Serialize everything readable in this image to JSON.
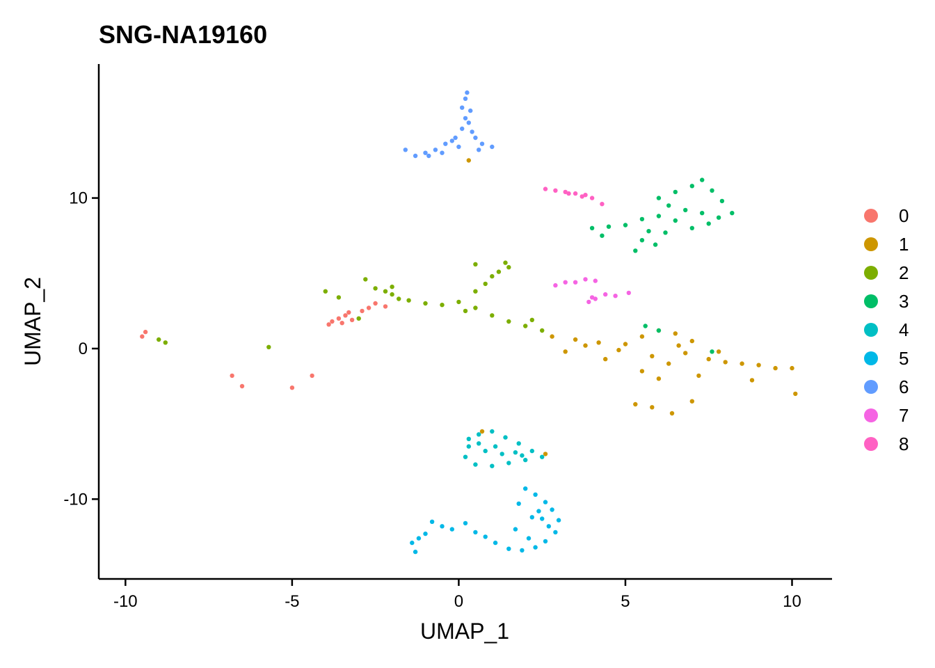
{
  "chart_data": {
    "type": "scatter",
    "title": "SNG-NA19160",
    "xlabel": "UMAP_1",
    "ylabel": "UMAP_2",
    "xlim": [
      -10.8,
      11.2
    ],
    "ylim": [
      -15.3,
      18.9
    ],
    "x_ticks": [
      -10,
      -5,
      0,
      5,
      10
    ],
    "x_tick_labels": [
      "-10",
      "-5",
      "0",
      "5",
      "10"
    ],
    "y_ticks": [
      -10,
      0,
      10
    ],
    "y_tick_labels": [
      "-10",
      "0",
      "10"
    ],
    "grid": false,
    "legend_position": "right",
    "series": [
      {
        "name": "0",
        "color": "#F8766D",
        "points": [
          [
            -3.8,
            1.8
          ],
          [
            -3.6,
            2.0
          ],
          [
            -3.4,
            2.2
          ],
          [
            -3.2,
            1.9
          ],
          [
            -3.9,
            1.6
          ],
          [
            -3.5,
            1.7
          ],
          [
            -3.3,
            2.4
          ],
          [
            -2.9,
            2.5
          ],
          [
            -2.7,
            2.7
          ],
          [
            -2.2,
            2.8
          ],
          [
            -2.5,
            3.0
          ],
          [
            -9.4,
            1.1
          ],
          [
            -9.5,
            0.8
          ],
          [
            -6.8,
            -1.8
          ],
          [
            -6.5,
            -2.5
          ],
          [
            -5.0,
            -2.6
          ],
          [
            -4.4,
            -1.8
          ]
        ]
      },
      {
        "name": "1",
        "color": "#CD9600",
        "points": [
          [
            2.8,
            0.8
          ],
          [
            3.5,
            0.6
          ],
          [
            4.2,
            0.4
          ],
          [
            5.0,
            0.3
          ],
          [
            5.5,
            0.8
          ],
          [
            6.0,
            1.2
          ],
          [
            6.5,
            1.0
          ],
          [
            7.0,
            0.5
          ],
          [
            5.8,
            -0.5
          ],
          [
            6.3,
            -1.0
          ],
          [
            6.8,
            -0.3
          ],
          [
            7.5,
            -0.7
          ],
          [
            8.0,
            -0.9
          ],
          [
            8.5,
            -1.0
          ],
          [
            9.0,
            -1.1
          ],
          [
            9.5,
            -1.3
          ],
          [
            10.0,
            -1.3
          ],
          [
            10.1,
            -3.0
          ],
          [
            5.5,
            -1.5
          ],
          [
            6.0,
            -2.0
          ],
          [
            7.2,
            -1.8
          ],
          [
            8.8,
            -2.1
          ],
          [
            5.3,
            -3.7
          ],
          [
            5.8,
            -3.9
          ],
          [
            6.4,
            -4.3
          ],
          [
            7.0,
            -3.5
          ],
          [
            6.6,
            0.2
          ],
          [
            7.8,
            -0.2
          ],
          [
            4.8,
            -0.1
          ],
          [
            3.8,
            0.2
          ],
          [
            3.2,
            -0.2
          ],
          [
            4.4,
            -0.7
          ],
          [
            0.7,
            -5.5
          ],
          [
            2.6,
            -7.0
          ],
          [
            0.3,
            12.5
          ]
        ]
      },
      {
        "name": "2",
        "color": "#7CAE00",
        "points": [
          [
            -2.8,
            4.6
          ],
          [
            -2.5,
            4.0
          ],
          [
            -2.2,
            3.8
          ],
          [
            -2.0,
            3.6
          ],
          [
            -1.5,
            3.2
          ],
          [
            -1.0,
            3.0
          ],
          [
            -0.5,
            2.9
          ],
          [
            0.0,
            3.1
          ],
          [
            0.5,
            2.7
          ],
          [
            1.0,
            2.2
          ],
          [
            1.5,
            1.8
          ],
          [
            2.0,
            1.5
          ],
          [
            2.5,
            1.2
          ],
          [
            0.5,
            3.8
          ],
          [
            0.8,
            4.3
          ],
          [
            1.0,
            4.8
          ],
          [
            1.2,
            5.1
          ],
          [
            0.5,
            5.6
          ],
          [
            1.5,
            5.4
          ],
          [
            1.4,
            5.7
          ],
          [
            -4.0,
            3.8
          ],
          [
            -3.6,
            3.4
          ],
          [
            -3.0,
            2.0
          ],
          [
            -8.8,
            0.4
          ],
          [
            -9.0,
            0.6
          ],
          [
            -5.7,
            0.1
          ],
          [
            -2.0,
            4.1
          ],
          [
            -1.8,
            3.3
          ],
          [
            0.2,
            2.5
          ],
          [
            2.2,
            1.9
          ]
        ]
      },
      {
        "name": "3",
        "color": "#00BE67",
        "points": [
          [
            6.0,
            10.0
          ],
          [
            6.5,
            10.4
          ],
          [
            7.0,
            10.8
          ],
          [
            7.3,
            11.2
          ],
          [
            7.6,
            10.5
          ],
          [
            7.9,
            9.8
          ],
          [
            8.2,
            9.0
          ],
          [
            7.5,
            8.3
          ],
          [
            7.0,
            8.0
          ],
          [
            6.5,
            8.5
          ],
          [
            6.0,
            8.8
          ],
          [
            5.5,
            8.6
          ],
          [
            5.0,
            8.2
          ],
          [
            4.5,
            8.1
          ],
          [
            4.0,
            8.0
          ],
          [
            5.3,
            6.5
          ],
          [
            5.5,
            7.2
          ],
          [
            5.7,
            7.8
          ],
          [
            6.3,
            9.5
          ],
          [
            6.8,
            9.2
          ],
          [
            7.3,
            9.0
          ],
          [
            7.8,
            8.7
          ],
          [
            6.2,
            7.7
          ],
          [
            5.9,
            6.9
          ],
          [
            4.3,
            7.5
          ],
          [
            5.6,
            1.5
          ],
          [
            6.0,
            1.2
          ],
          [
            7.6,
            -0.2
          ]
        ]
      },
      {
        "name": "4",
        "color": "#00BFC4",
        "points": [
          [
            0.3,
            -6.0
          ],
          [
            0.6,
            -5.7
          ],
          [
            1.0,
            -5.5
          ],
          [
            1.4,
            -5.9
          ],
          [
            1.8,
            -6.3
          ],
          [
            2.2,
            -6.8
          ],
          [
            2.5,
            -7.2
          ],
          [
            2.0,
            -7.4
          ],
          [
            1.5,
            -7.6
          ],
          [
            1.0,
            -7.8
          ],
          [
            0.5,
            -7.7
          ],
          [
            0.2,
            -7.2
          ],
          [
            0.3,
            -6.5
          ],
          [
            0.8,
            -6.8
          ],
          [
            1.3,
            -7.0
          ],
          [
            1.7,
            -6.9
          ],
          [
            0.6,
            -6.3
          ],
          [
            1.1,
            -6.5
          ],
          [
            1.9,
            -7.1
          ]
        ]
      },
      {
        "name": "5",
        "color": "#00B8E7",
        "points": [
          [
            -1.4,
            -12.9
          ],
          [
            -1.2,
            -12.6
          ],
          [
            -1.0,
            -12.3
          ],
          [
            -0.8,
            -11.5
          ],
          [
            -0.5,
            -11.8
          ],
          [
            -0.2,
            -12.0
          ],
          [
            0.2,
            -11.6
          ],
          [
            0.5,
            -12.2
          ],
          [
            0.8,
            -12.5
          ],
          [
            1.1,
            -12.9
          ],
          [
            1.5,
            -13.3
          ],
          [
            1.9,
            -13.4
          ],
          [
            2.3,
            -13.2
          ],
          [
            2.6,
            -12.8
          ],
          [
            2.9,
            -12.2
          ],
          [
            3.0,
            -11.4
          ],
          [
            2.8,
            -10.7
          ],
          [
            2.6,
            -10.2
          ],
          [
            2.3,
            -9.7
          ],
          [
            2.0,
            -9.3
          ],
          [
            2.4,
            -10.8
          ],
          [
            2.7,
            -11.8
          ],
          [
            2.1,
            -12.6
          ],
          [
            1.7,
            -12.0
          ],
          [
            2.2,
            -11.2
          ],
          [
            1.8,
            -10.3
          ],
          [
            -1.3,
            -13.5
          ],
          [
            2.5,
            -11.3
          ]
        ]
      },
      {
        "name": "6",
        "color": "#619CFF",
        "points": [
          [
            -1.6,
            13.2
          ],
          [
            -1.3,
            12.8
          ],
          [
            -1.0,
            13.0
          ],
          [
            -0.7,
            13.2
          ],
          [
            -0.4,
            13.6
          ],
          [
            -0.1,
            14.0
          ],
          [
            0.1,
            14.6
          ],
          [
            0.2,
            15.3
          ],
          [
            0.1,
            16.0
          ],
          [
            0.2,
            16.6
          ],
          [
            0.25,
            17.0
          ],
          [
            0.3,
            15.0
          ],
          [
            0.5,
            14.0
          ],
          [
            0.7,
            13.6
          ],
          [
            1.0,
            13.4
          ],
          [
            0.6,
            13.2
          ],
          [
            0.0,
            13.4
          ],
          [
            -0.5,
            13.0
          ],
          [
            -0.9,
            12.8
          ],
          [
            0.4,
            14.4
          ],
          [
            -0.2,
            13.8
          ],
          [
            0.35,
            15.8
          ]
        ]
      },
      {
        "name": "7",
        "color": "#F564E3",
        "points": [
          [
            3.2,
            4.4
          ],
          [
            3.5,
            4.4
          ],
          [
            3.8,
            4.6
          ],
          [
            4.1,
            4.5
          ],
          [
            4.0,
            3.4
          ],
          [
            3.9,
            3.1
          ],
          [
            4.1,
            3.3
          ],
          [
            4.4,
            3.6
          ],
          [
            4.7,
            3.5
          ],
          [
            5.1,
            3.7
          ],
          [
            2.9,
            4.2
          ]
        ]
      },
      {
        "name": "8",
        "color": "#FF61C3",
        "points": [
          [
            2.6,
            10.6
          ],
          [
            2.9,
            10.5
          ],
          [
            3.2,
            10.4
          ],
          [
            3.5,
            10.3
          ],
          [
            3.8,
            10.2
          ],
          [
            4.0,
            10.0
          ],
          [
            3.3,
            10.3
          ],
          [
            4.3,
            9.6
          ],
          [
            3.7,
            10.1
          ]
        ]
      }
    ]
  }
}
